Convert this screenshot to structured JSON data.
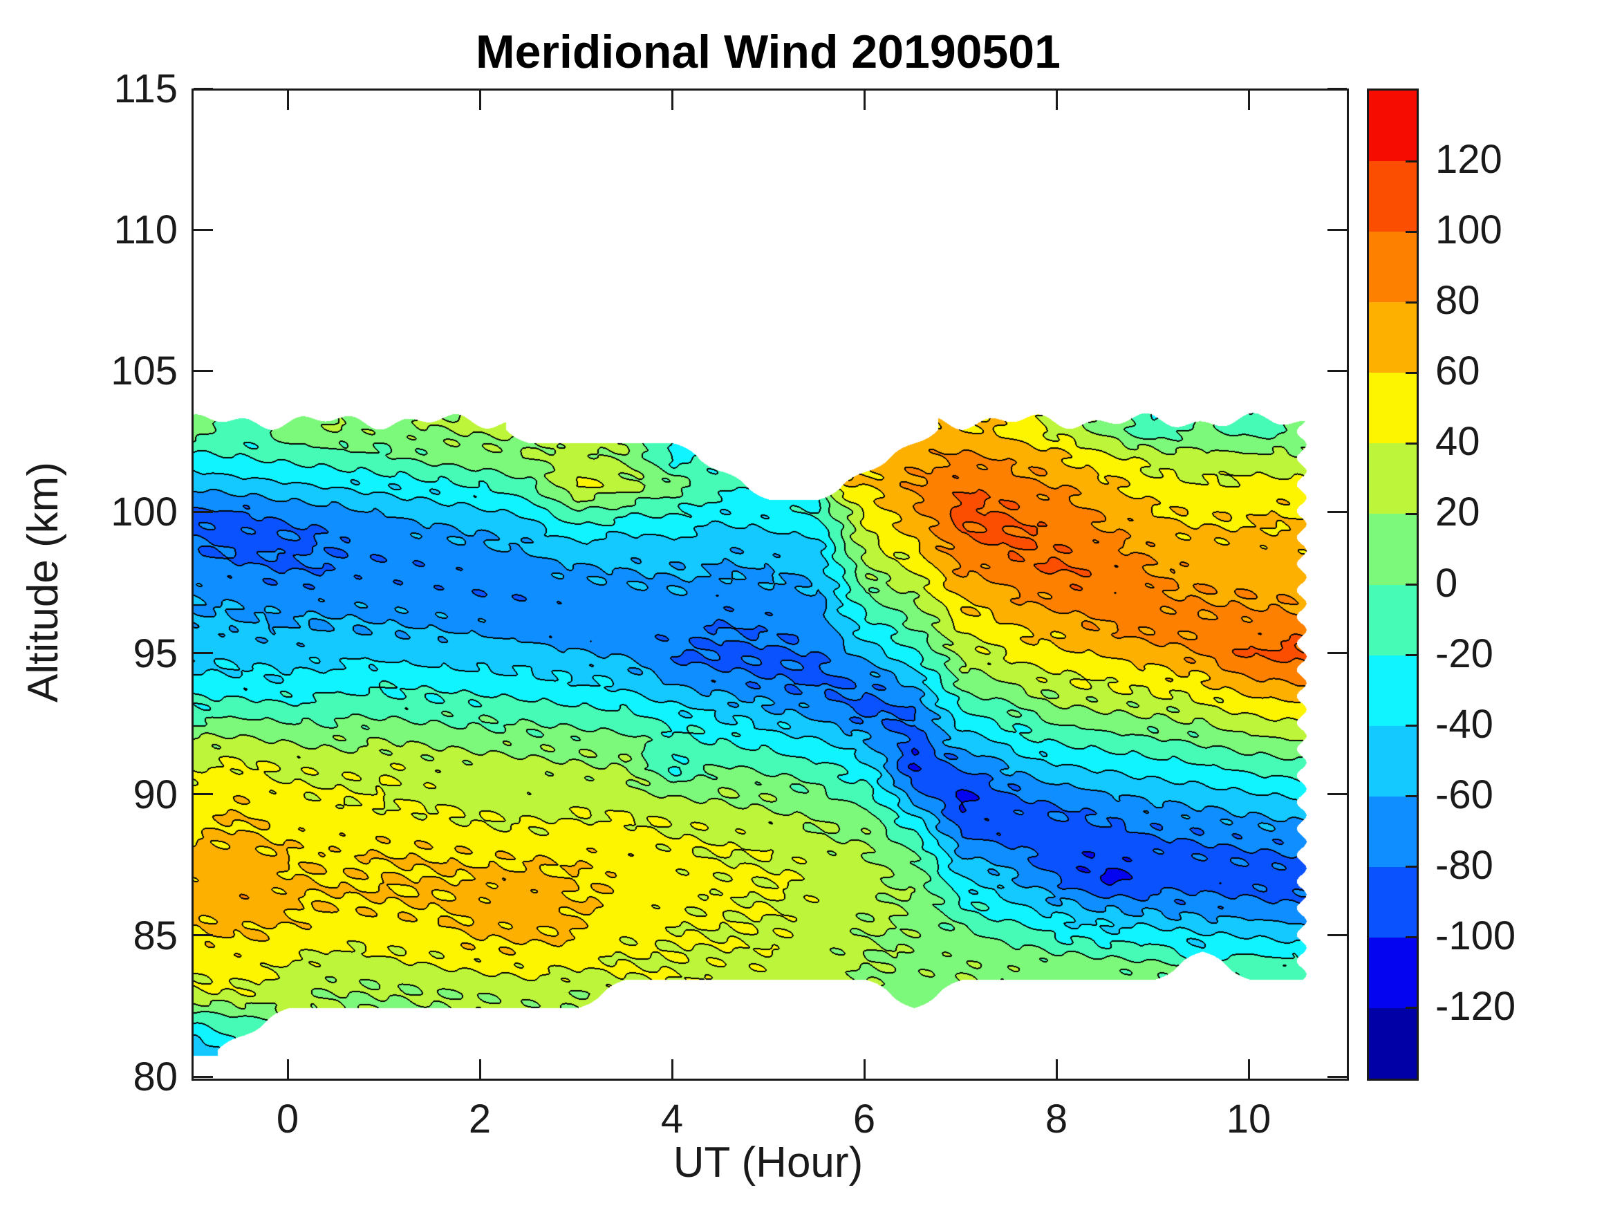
{
  "figure": {
    "title": "Meridional Wind 20190501",
    "xlabel": "UT (Hour)",
    "ylabel": "Altitude (km)",
    "background": "#ffffff",
    "axis_color": "#1a1a1a",
    "contour_line_color": "#000000"
  },
  "chart_data": {
    "type": "heatmap",
    "subtype": "filled-contour",
    "title": "Meridional Wind 20190501",
    "xlabel": "UT (Hour)",
    "ylabel": "Altitude (km)",
    "xlim": [
      -1,
      11
    ],
    "ylim": [
      80,
      115
    ],
    "grid": false,
    "x_tick_labels": [
      "0",
      "2",
      "4",
      "6",
      "8",
      "10"
    ],
    "x_tick_values": [
      0,
      2,
      4,
      6,
      8,
      10
    ],
    "y_tick_labels": [
      "80",
      "85",
      "90",
      "95",
      "100",
      "105",
      "110",
      "115"
    ],
    "y_tick_values": [
      80,
      85,
      90,
      95,
      100,
      105,
      110,
      115
    ],
    "contour_interval": 20,
    "levels": [
      -120,
      -100,
      -80,
      -60,
      -40,
      -20,
      0,
      20,
      40,
      60,
      80,
      100,
      120
    ],
    "colorbar_labels_top_to_bottom": [
      "120",
      "100",
      "80",
      "60",
      "40",
      "20",
      "0",
      "-20",
      "-40",
      "-60",
      "-80",
      "-100",
      "-120"
    ],
    "band_colors_low_to_high": [
      "#0000a6",
      "#0404f0",
      "#0b52ff",
      "#0e8eff",
      "#13c9ff",
      "#0ff4ff",
      "#46fbb6",
      "#7cf87a",
      "#bdf53a",
      "#fdf400",
      "#feb000",
      "#fd8000",
      "#fc4e00",
      "#f60c00"
    ],
    "hours": [
      -1,
      -0.5,
      0,
      0.5,
      1,
      1.5,
      2,
      2.5,
      3,
      3.5,
      4,
      4.5,
      5,
      5.5,
      6,
      6.5,
      7,
      7.5,
      8,
      8.5,
      9,
      9.5,
      10,
      10.5
    ],
    "altitudes_km_top_to_bottom": [
      103,
      102,
      101,
      100,
      99,
      98,
      97,
      96,
      95,
      94,
      93,
      92,
      91,
      90,
      89,
      88,
      87,
      86,
      85,
      84,
      83,
      82,
      81
    ],
    "wind_grid": [
      [
        10,
        -12,
        12,
        18,
        15,
        20,
        25,
        null,
        null,
        null,
        null,
        null,
        null,
        null,
        null,
        null,
        62,
        55,
        30,
        12,
        -18,
        8,
        -15,
        5
      ],
      [
        -25,
        -20,
        -15,
        -10,
        -5,
        5,
        10,
        20,
        28,
        18,
        -25,
        null,
        null,
        null,
        null,
        70,
        85,
        75,
        65,
        45,
        30,
        25,
        28,
        25
      ],
      [
        -55,
        -50,
        -45,
        -40,
        -35,
        -28,
        -20,
        -5,
        45,
        30,
        8,
        -15,
        null,
        null,
        58,
        82,
        100,
        90,
        80,
        65,
        50,
        42,
        45,
        48
      ],
      [
        -88,
        -85,
        -75,
        -70,
        -60,
        -55,
        -48,
        -35,
        -5,
        -15,
        -20,
        -35,
        -30,
        -20,
        45,
        75,
        108,
        100,
        88,
        78,
        62,
        55,
        58,
        60
      ],
      [
        -80,
        -88,
        -85,
        -78,
        -72,
        -68,
        -62,
        -55,
        -45,
        -48,
        -45,
        -52,
        -48,
        -42,
        35,
        60,
        95,
        105,
        95,
        85,
        72,
        65,
        68,
        65
      ],
      [
        -70,
        -75,
        -80,
        -75,
        -76,
        -74,
        -72,
        -68,
        -62,
        -60,
        -58,
        -62,
        -60,
        -55,
        18,
        42,
        80,
        90,
        102,
        92,
        80,
        72,
        72,
        70
      ],
      [
        -62,
        -65,
        -70,
        -68,
        -70,
        -72,
        -75,
        -74,
        -70,
        -68,
        -65,
        -70,
        -68,
        -65,
        -5,
        22,
        62,
        75,
        88,
        95,
        85,
        80,
        78,
        75
      ],
      [
        -55,
        -58,
        -60,
        -58,
        -60,
        -62,
        -65,
        -68,
        -72,
        -74,
        -72,
        -78,
        -75,
        -72,
        -30,
        0,
        45,
        60,
        70,
        80,
        88,
        85,
        88,
        92
      ],
      [
        -45,
        -48,
        -50,
        -45,
        -45,
        -48,
        -50,
        -52,
        -58,
        -62,
        -80,
        -85,
        -85,
        -80,
        -55,
        -25,
        25,
        42,
        55,
        62,
        70,
        82,
        102,
        105
      ],
      [
        -35,
        -30,
        -35,
        -28,
        -25,
        -28,
        -30,
        -32,
        -38,
        -42,
        -65,
        -72,
        -80,
        -85,
        -78,
        -55,
        5,
        22,
        35,
        42,
        48,
        55,
        75,
        80
      ],
      [
        -12,
        -8,
        -10,
        -8,
        -5,
        -8,
        -10,
        -12,
        -15,
        -18,
        -35,
        -45,
        -55,
        -65,
        -88,
        -80,
        -22,
        -5,
        12,
        18,
        22,
        28,
        45,
        50
      ],
      [
        20,
        25,
        18,
        15,
        18,
        15,
        12,
        10,
        8,
        5,
        -12,
        -20,
        -28,
        -38,
        -60,
        -90,
        -50,
        -30,
        -18,
        -10,
        -5,
        2,
        15,
        20
      ],
      [
        40,
        45,
        35,
        32,
        38,
        32,
        30,
        28,
        25,
        22,
        -25,
        5,
        -5,
        -15,
        -32,
        -102,
        -80,
        -60,
        -45,
        -38,
        -30,
        -25,
        -15,
        -10
      ],
      [
        50,
        55,
        45,
        42,
        38,
        35,
        30,
        28,
        30,
        30,
        20,
        20,
        15,
        5,
        -8,
        -70,
        -104,
        -85,
        -70,
        -62,
        -55,
        -50,
        -42,
        -38
      ],
      [
        55,
        62,
        52,
        50,
        50,
        48,
        42,
        40,
        45,
        45,
        38,
        32,
        28,
        20,
        12,
        -25,
        -92,
        -92,
        -88,
        -82,
        -75,
        -72,
        -65,
        -60
      ],
      [
        62,
        70,
        58,
        55,
        58,
        58,
        55,
        55,
        54,
        52,
        45,
        40,
        38,
        30,
        22,
        2,
        -62,
        -75,
        -95,
        -96,
        -88,
        -85,
        -82,
        -80
      ],
      [
        68,
        75,
        64,
        58,
        60,
        62,
        64,
        66,
        60,
        55,
        48,
        45,
        42,
        35,
        28,
        15,
        -38,
        -55,
        -80,
        -104,
        -92,
        -88,
        -88,
        -92
      ],
      [
        66,
        72,
        62,
        58,
        58,
        60,
        68,
        70,
        62,
        52,
        45,
        42,
        40,
        32,
        25,
        18,
        -15,
        -32,
        -50,
        -60,
        -65,
        -70,
        -72,
        -75
      ],
      [
        58,
        60,
        55,
        45,
        50,
        52,
        62,
        64,
        58,
        45,
        42,
        40,
        38,
        30,
        22,
        15,
        8,
        -5,
        -20,
        -28,
        -30,
        -38,
        -40,
        -45
      ],
      [
        48,
        50,
        38,
        28,
        32,
        40,
        45,
        48,
        42,
        40,
        38,
        35,
        35,
        28,
        20,
        15,
        18,
        15,
        12,
        8,
        5,
        null,
        -5,
        -10
      ],
      [
        35,
        38,
        25,
        20,
        18,
        20,
        22,
        25,
        22,
        null,
        null,
        null,
        null,
        null,
        null,
        10,
        null,
        null,
        null,
        null,
        null,
        null,
        null,
        null
      ],
      [
        -20,
        -10,
        null,
        null,
        null,
        null,
        null,
        null,
        null,
        null,
        null,
        null,
        null,
        null,
        null,
        null,
        null,
        null,
        null,
        null,
        null,
        null,
        null,
        null
      ],
      [
        -52,
        null,
        null,
        null,
        null,
        null,
        null,
        null,
        null,
        null,
        null,
        null,
        null,
        null,
        null,
        null,
        null,
        null,
        null,
        null,
        null,
        null,
        null,
        null
      ]
    ]
  }
}
